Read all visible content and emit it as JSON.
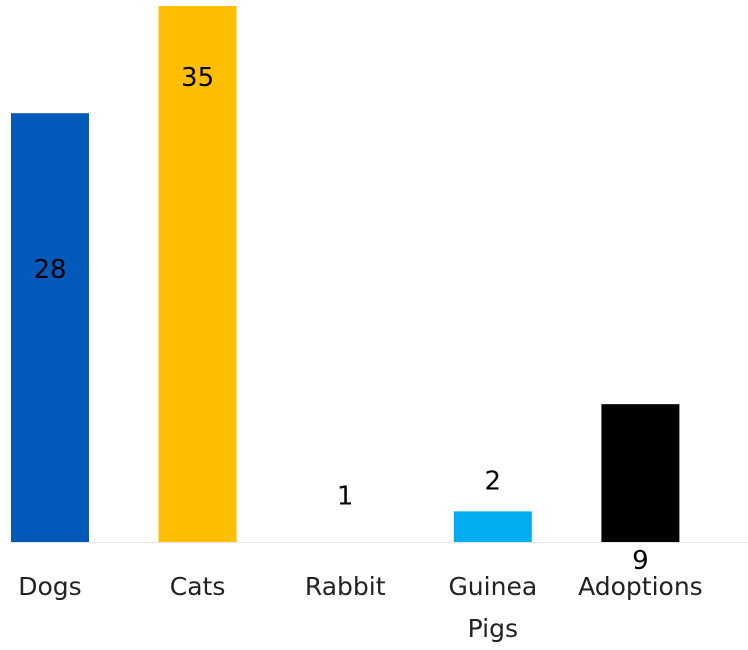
{
  "chart_data": {
    "type": "bar",
    "title": "",
    "xlabel": "",
    "ylabel": "",
    "categories": [
      "Dogs",
      "Cats",
      "Rabbit",
      "Guinea Pigs",
      "Adoptions"
    ],
    "category_lines": [
      [
        "Dogs"
      ],
      [
        "Cats"
      ],
      [
        "Rabbit"
      ],
      [
        "Guinea",
        "Pigs"
      ],
      [
        "Adoptions"
      ]
    ],
    "values": [
      28,
      35,
      1,
      2,
      9
    ],
    "colors": [
      "#045ABA",
      "#FFBF00",
      "#FFFFFF",
      "#00ADEF",
      "#000000"
    ],
    "label_colors": [
      "#000000",
      "#000000",
      "#000000",
      "#000000",
      "#000000"
    ],
    "ylim": [
      0,
      35
    ],
    "grid": false,
    "legend": "none"
  }
}
